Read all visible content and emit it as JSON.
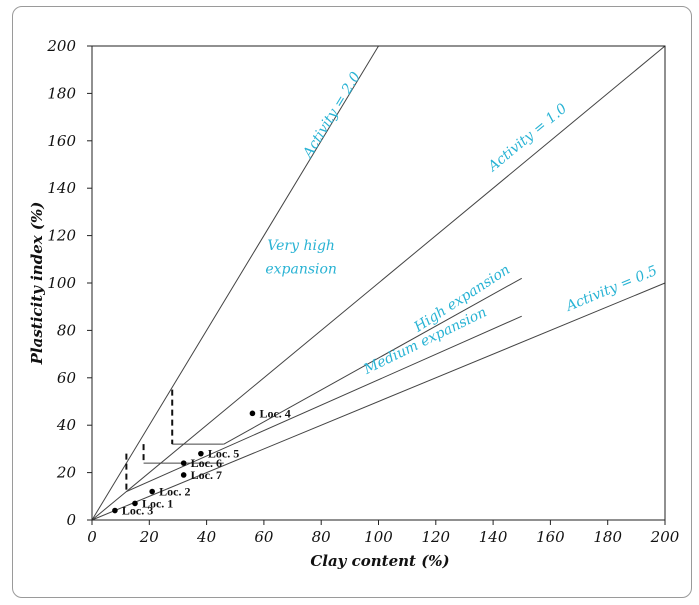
{
  "chart_data": {
    "type": "scatter",
    "xlabel": "Clay content (%)",
    "ylabel": "Plasticity index (%)",
    "xlim": [
      0,
      200
    ],
    "ylim": [
      0,
      200
    ],
    "x_ticks": [
      0,
      20,
      40,
      60,
      80,
      100,
      120,
      140,
      160,
      180,
      200
    ],
    "y_ticks": [
      0,
      20,
      40,
      60,
      80,
      100,
      120,
      140,
      160,
      180,
      200
    ],
    "grid": false,
    "legend": "none",
    "points": [
      {
        "label": "Loc. 1",
        "x": 15,
        "y": 7
      },
      {
        "label": "Loc. 2",
        "x": 21,
        "y": 12
      },
      {
        "label": "Loc. 3",
        "x": 8,
        "y": 4
      },
      {
        "label": "Loc. 4",
        "x": 56,
        "y": 45
      },
      {
        "label": "Loc. 5",
        "x": 38,
        "y": 28
      },
      {
        "label": "Loc. 6",
        "x": 32,
        "y": 24
      },
      {
        "label": "Loc. 7",
        "x": 32,
        "y": 19
      }
    ],
    "reference_lines": [
      {
        "label": "Activity = 2.0",
        "slope": 2.0,
        "x_end": 100
      },
      {
        "label": "Activity = 1.0",
        "slope": 1.0,
        "x_end": 200
      },
      {
        "label": "Activity = 0.5",
        "slope": 0.5,
        "x_end": 200
      }
    ],
    "boundary_lines": [
      {
        "points": [
          [
            46,
            32
          ],
          [
            150,
            102
          ]
        ]
      },
      {
        "points": [
          [
            12,
            12
          ],
          [
            150,
            86
          ]
        ]
      }
    ],
    "dashed_boundaries": [
      {
        "points": [
          [
            12,
            28
          ],
          [
            12,
            12
          ]
        ]
      },
      {
        "points": [
          [
            18,
            32
          ],
          [
            18,
            24
          ]
        ]
      },
      {
        "points": [
          [
            28,
            55
          ],
          [
            28,
            32
          ]
        ]
      }
    ],
    "solid_steps": [
      {
        "points": [
          [
            18,
            24
          ],
          [
            46,
            24
          ]
        ]
      },
      {
        "points": [
          [
            28,
            32
          ],
          [
            46,
            32
          ]
        ]
      }
    ],
    "zone_labels": [
      {
        "text": "Very high",
        "x": 73,
        "y": 114
      },
      {
        "text": "expansion",
        "x": 73,
        "y": 104
      },
      {
        "text": "High  expansion",
        "x": 130,
        "y": 92,
        "angle": 33
      },
      {
        "text": "Medium  expansion",
        "x": 117,
        "y": 74,
        "angle": 26
      }
    ]
  },
  "colors": {
    "annotation": "#29b3d4",
    "lines": "#444444",
    "points": "#000000"
  }
}
